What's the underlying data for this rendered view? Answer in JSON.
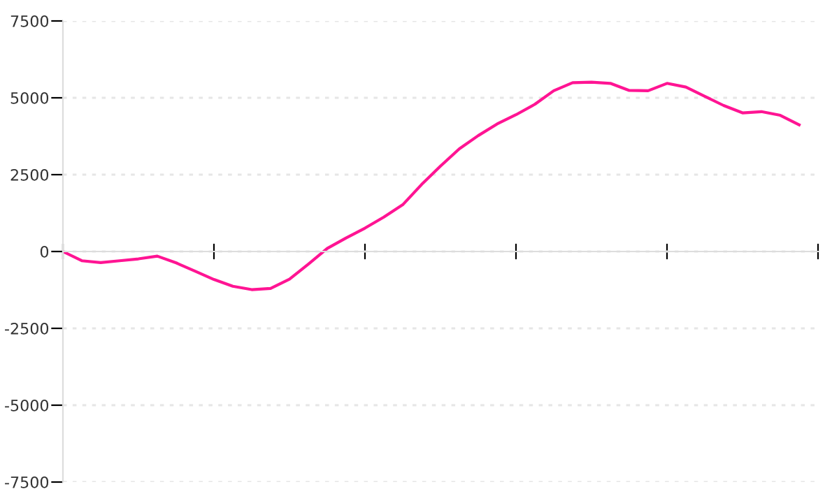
{
  "chart_data": {
    "type": "line",
    "categories": [
      null,
      null,
      null,
      null,
      null,
      null,
      null,
      null,
      null,
      null,
      null,
      null,
      null,
      null,
      null,
      null,
      null,
      null,
      null,
      null,
      null,
      null,
      null,
      null,
      null,
      null,
      null,
      null,
      null,
      null,
      null,
      null,
      null,
      null,
      null,
      null,
      null,
      null,
      null,
      null
    ],
    "series": [
      {
        "color": "#ff1493",
        "values": [
          0,
          -300,
          -360,
          -300,
          -240,
          -150,
          -370,
          -640,
          -910,
          -1130,
          -1240,
          -1200,
          -900,
          -410,
          100,
          440,
          760,
          1120,
          1520,
          2180,
          2780,
          3340,
          3770,
          4150,
          4450,
          4790,
          5230,
          5490,
          5510,
          5470,
          5240,
          5230,
          5470,
          5350,
          5050,
          4750,
          4510,
          4550,
          4430,
          4120
        ]
      }
    ],
    "ylim": [
      -7500,
      7500
    ],
    "yticks": [
      -7500,
      -5000,
      -2500,
      0,
      2500,
      5000,
      7500
    ],
    "grid": "y",
    "tick_labels": "y",
    "legend": false,
    "marker": "none",
    "line_style": "solid"
  }
}
